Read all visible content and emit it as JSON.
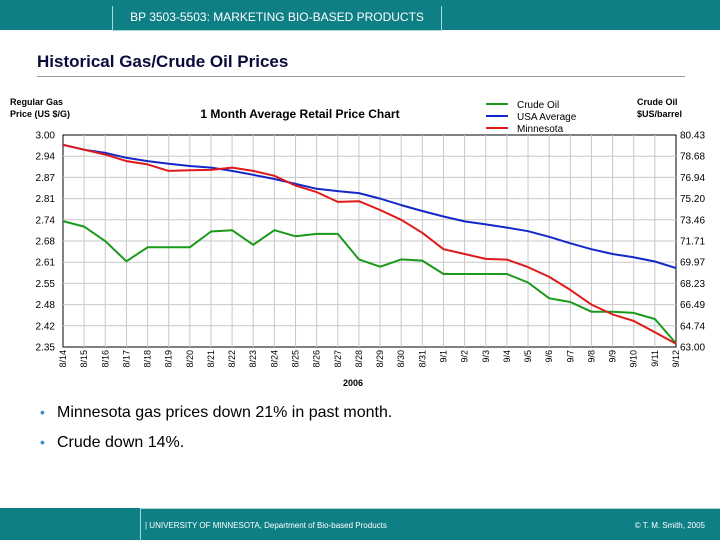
{
  "header": {
    "course": "BP 3503-5503: MARKETING BIO-BASED PRODUCTS"
  },
  "slide": {
    "title": "Historical Gas/Crude Oil Prices"
  },
  "bullets": [
    "Minnesota gas prices down 21% in past month.",
    "Crude down 14%."
  ],
  "footer": {
    "left": "|  UNIVERSITY OF MINNESOTA, Department of Bio-based Products",
    "right": "© T. M. Smith, 2005"
  },
  "colors": {
    "accent": "#0f7f86",
    "crude": "#1a9a1a",
    "usa": "#1428c8",
    "minnesota": "#e01a1a"
  },
  "chart_data": {
    "type": "line",
    "title": "1 Month Average Retail Price Chart",
    "xlabel": "2006",
    "ylabel_left": [
      "Regular Gas",
      "Price (US $/G)"
    ],
    "ylabel_right": [
      "Crude Oil",
      "$US/barrel"
    ],
    "categories": [
      "8/14",
      "8/15",
      "8/16",
      "8/17",
      "8/18",
      "8/19",
      "8/20",
      "8/21",
      "8/22",
      "8/23",
      "8/24",
      "8/25",
      "8/26",
      "8/27",
      "8/28",
      "8/29",
      "8/30",
      "8/31",
      "9/1",
      "9/2",
      "9/3",
      "9/4",
      "9/5",
      "9/6",
      "9/7",
      "9/8",
      "9/9",
      "9/10",
      "9/11",
      "9/12"
    ],
    "y_left_ticks": [
      "3.00",
      "2.94",
      "2.87",
      "2.81",
      "2.74",
      "2.68",
      "2.61",
      "2.55",
      "2.48",
      "2.42",
      "2.35"
    ],
    "y_right_ticks": [
      "80.43",
      "78.68",
      "76.94",
      "75.20",
      "73.46",
      "71.71",
      "69.97",
      "68.23",
      "66.49",
      "64.74",
      "63.00"
    ],
    "y_left_range": [
      2.35,
      3.0
    ],
    "y_right_range": [
      63.0,
      80.43
    ],
    "grid": true,
    "legend_position": "top-right",
    "series": [
      {
        "name": "Crude Oil",
        "axis": "right",
        "values": [
          73.35,
          72.9,
          71.7,
          70.05,
          71.2,
          71.2,
          71.2,
          72.5,
          72.6,
          71.4,
          72.6,
          72.1,
          72.3,
          72.3,
          70.2,
          69.6,
          70.2,
          70.1,
          69.0,
          69.0,
          69.0,
          69.0,
          68.3,
          67.0,
          66.7,
          65.9,
          65.9,
          65.8,
          65.3,
          63.3
        ]
      },
      {
        "name": "USA Average",
        "axis": "left",
        "values": [
          2.97,
          2.955,
          2.945,
          2.93,
          2.92,
          2.912,
          2.905,
          2.9,
          2.89,
          2.878,
          2.865,
          2.85,
          2.835,
          2.828,
          2.822,
          2.805,
          2.785,
          2.767,
          2.75,
          2.735,
          2.726,
          2.716,
          2.705,
          2.688,
          2.668,
          2.65,
          2.635,
          2.625,
          2.612,
          2.592
        ]
      },
      {
        "name": "Minnesota",
        "axis": "left",
        "values": [
          2.97,
          2.955,
          2.94,
          2.92,
          2.91,
          2.89,
          2.892,
          2.893,
          2.9,
          2.89,
          2.875,
          2.845,
          2.825,
          2.795,
          2.797,
          2.77,
          2.74,
          2.7,
          2.65,
          2.635,
          2.62,
          2.618,
          2.595,
          2.565,
          2.525,
          2.48,
          2.45,
          2.43,
          2.395,
          2.36
        ]
      }
    ]
  }
}
